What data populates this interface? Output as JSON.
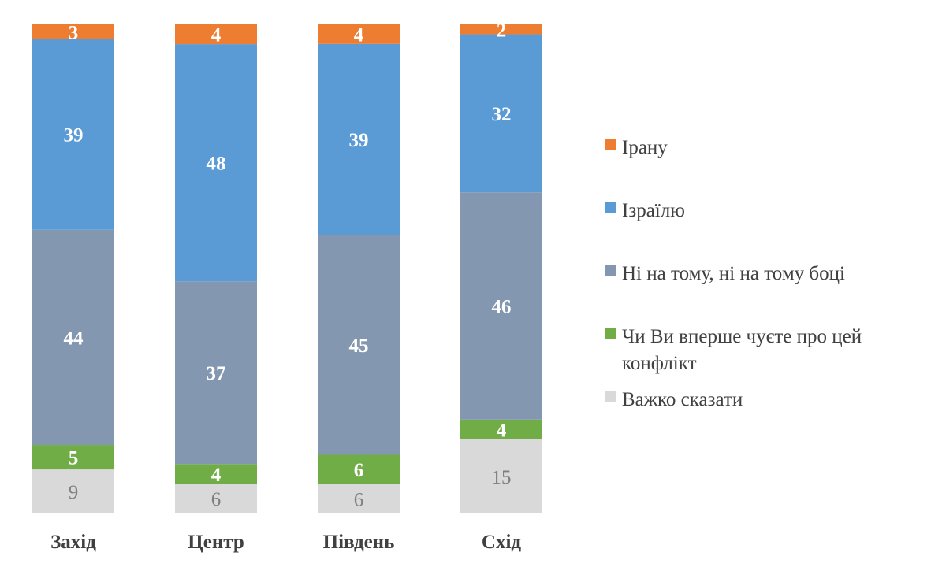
{
  "chart_data": {
    "type": "bar",
    "stacked": true,
    "categories": [
      "Захід",
      "Центр",
      "Південь",
      "Схід"
    ],
    "series": [
      {
        "name": "Важко сказати",
        "color": "#d9d9d9",
        "label_color": "#7f7f7f",
        "values": [
          9,
          6,
          6,
          15
        ]
      },
      {
        "name": "Чи Ви вперше чуєте про цей конфлікт",
        "color": "#70ad47",
        "label_color": "#ffffff",
        "values": [
          5,
          4,
          6,
          4
        ]
      },
      {
        "name": "Ні на тому, ні на тому боці",
        "color": "#8497b0",
        "label_color": "#ffffff",
        "values": [
          44,
          37,
          45,
          46
        ]
      },
      {
        "name": "Ізраїлю",
        "color": "#5b9bd5",
        "label_color": "#ffffff",
        "values": [
          39,
          48,
          39,
          32
        ]
      },
      {
        "name": "Ірану",
        "color": "#ed7d31",
        "label_color": "#ffffff",
        "values": [
          3,
          4,
          4,
          2
        ]
      }
    ],
    "legend_order": [
      "Ірану",
      "Ізраїлю",
      "Ні на тому, ні на тому боці",
      "Чи Ви вперше чуєте про цей конфлікт",
      "Важко сказати"
    ],
    "legend_position": "right",
    "ylim": [
      0,
      100
    ],
    "grid": false
  }
}
